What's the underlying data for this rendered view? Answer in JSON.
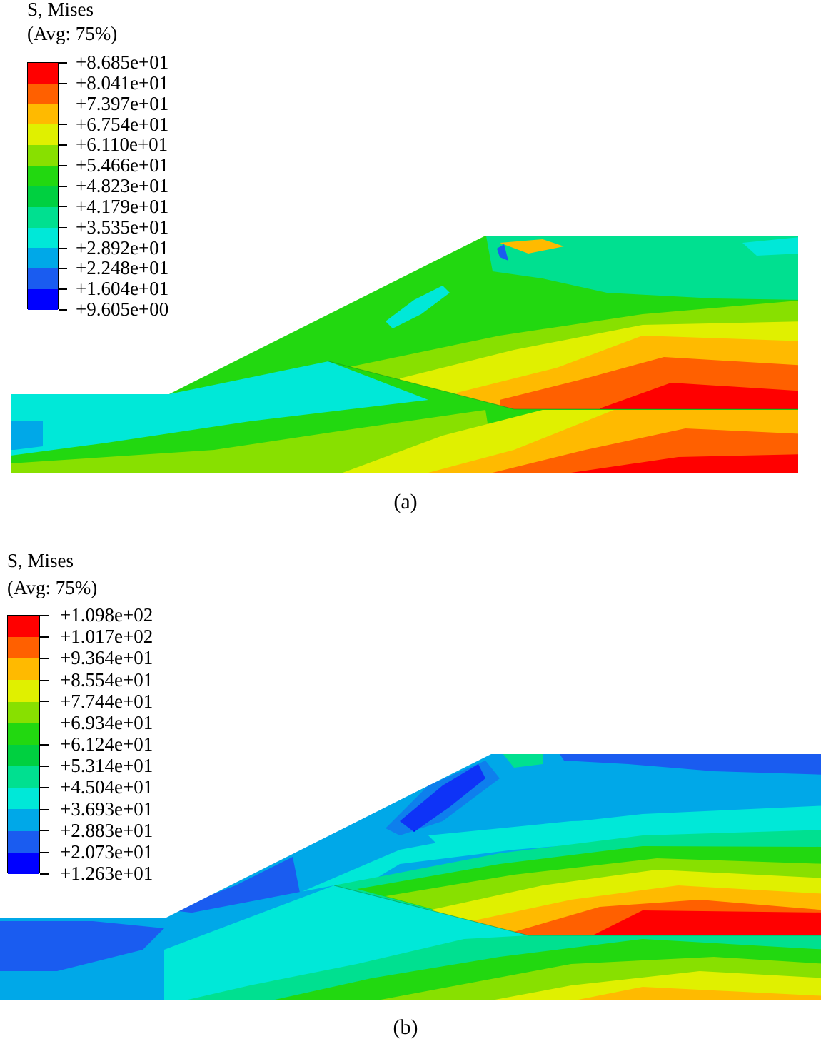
{
  "colors": {
    "contour_scale": [
      "#0000ff",
      "#1a5cf0",
      "#00a8e8",
      "#00e8d8",
      "#00e090",
      "#00d040",
      "#22d810",
      "#88e000",
      "#e0f000",
      "#ffba00",
      "#ff6000",
      "#ff0000"
    ]
  },
  "panels": [
    {
      "caption": "(a)",
      "legend": {
        "title_line1": "S, Mises",
        "title_line2": "(Avg: 75%)",
        "labels": [
          "+8.685e+01",
          "+8.041e+01",
          "+7.397e+01",
          "+6.754e+01",
          "+6.110e+01",
          "+5.466e+01",
          "+4.823e+01",
          "+4.179e+01",
          "+3.535e+01",
          "+2.892e+01",
          "+2.248e+01",
          "+1.604e+01",
          "+9.605e+00"
        ]
      }
    },
    {
      "caption": "(b)",
      "legend": {
        "title_line1": "S, Mises",
        "title_line2": "(Avg: 75%)",
        "labels": [
          "+1.098e+02",
          "+1.017e+02",
          "+9.364e+01",
          "+8.554e+01",
          "+7.744e+01",
          "+6.934e+01",
          "+6.124e+01",
          "+5.314e+01",
          "+4.504e+01",
          "+3.693e+01",
          "+2.883e+01",
          "+2.073e+01",
          "+1.263e+01"
        ]
      }
    }
  ]
}
